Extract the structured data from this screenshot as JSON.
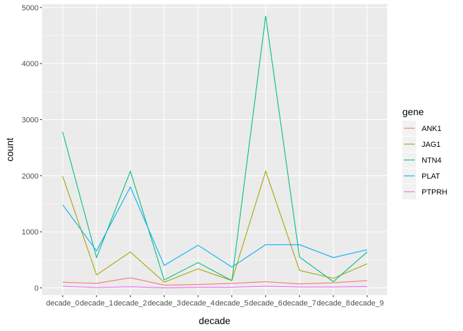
{
  "chart_data": {
    "type": "line",
    "xlabel": "decade",
    "ylabel": "count",
    "categories": [
      "decade_0",
      "decade_1",
      "decade_2",
      "decade_3",
      "decade_4",
      "decade_5",
      "decade_6",
      "decade_7",
      "decade_8",
      "decade_9"
    ],
    "ylim": [
      -130,
      5060
    ],
    "yticks": [
      0,
      1000,
      2000,
      3000,
      4000,
      5000
    ],
    "grid": true,
    "legend": {
      "title": "gene",
      "placement": "right"
    },
    "series": [
      {
        "name": "ANK1",
        "color": "#F8766D",
        "values": [
          100,
          80,
          180,
          50,
          60,
          80,
          110,
          70,
          90,
          130
        ]
      },
      {
        "name": "JAG1",
        "color": "#A3A500",
        "values": [
          1990,
          230,
          640,
          100,
          340,
          130,
          2080,
          310,
          170,
          430
        ]
      },
      {
        "name": "NTN4",
        "color": "#00BF7D",
        "values": [
          2780,
          540,
          2080,
          140,
          450,
          130,
          4850,
          550,
          110,
          640
        ]
      },
      {
        "name": "PLAT",
        "color": "#00B0F6",
        "values": [
          1480,
          660,
          1800,
          400,
          760,
          370,
          770,
          770,
          540,
          680
        ]
      },
      {
        "name": "PTPRH",
        "color": "#E76BF3",
        "values": [
          30,
          5,
          20,
          0,
          10,
          10,
          30,
          15,
          15,
          25
        ]
      }
    ]
  }
}
